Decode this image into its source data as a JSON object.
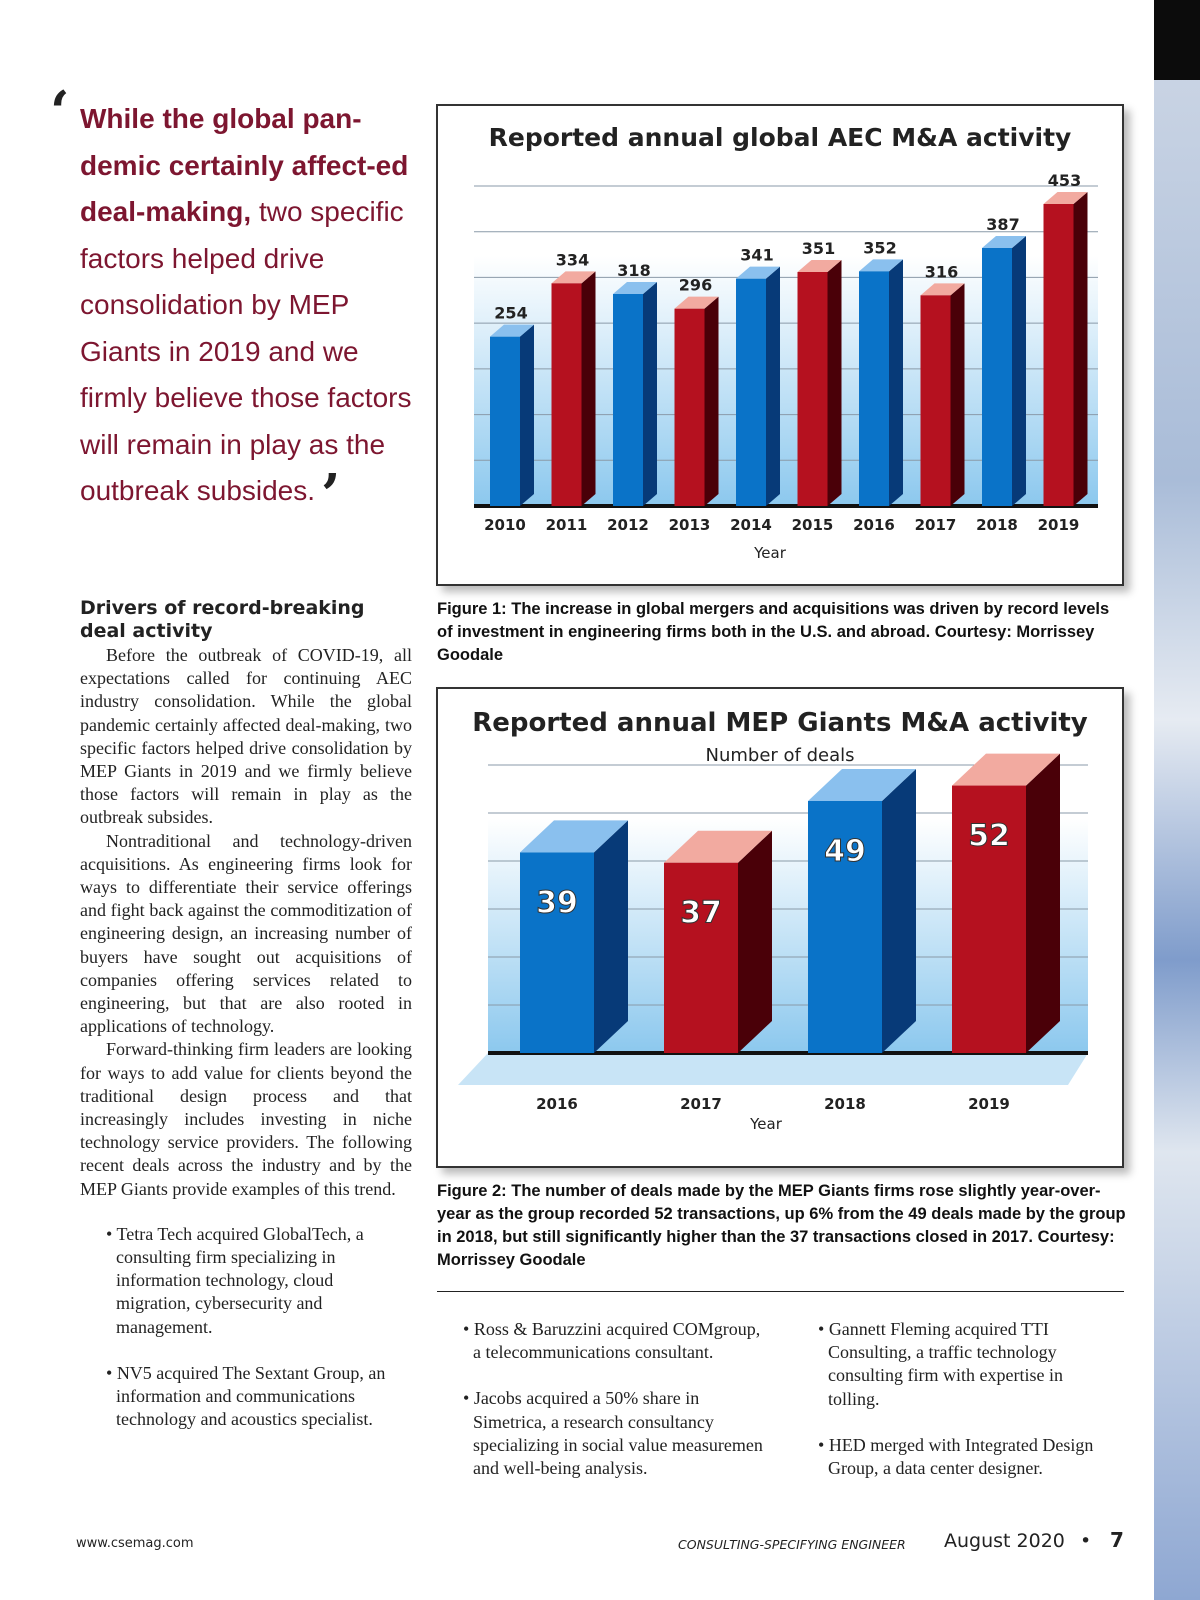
{
  "pull_quote": {
    "bold": "While the global pan-demic certainly affect-ed deal-making,",
    "rest": " two specific factors helped drive consolidation by MEP Giants in 2019 and we firmly believe those factors will remain in play as the outbreak subsides."
  },
  "section_heading": "Drivers of record-breaking deal activity",
  "paragraphs": [
    "Before the outbreak of COVID-19, all expectations called for continuing AEC industry consolidation. While the global pandemic certainly affected deal-making, two specific factors helped drive consolidation by MEP Giants in 2019 and we firmly believe those factors will remain in play as the outbreak subsides.",
    "Nontraditional and technology-driven acquisitions. As engineering firms look for ways to differentiate their service offerings and fight back against the commoditization of engineering design, an increasing number of buyers have sought out acquisitions of companies offering services related to engineering, but that are also rooted in applications of technology.",
    "Forward-thinking firm leaders are looking for ways to add value for clients beyond the traditional design process and that increasingly includes investing in niche technology service providers. The following recent deals across the industry and by the MEP Giants provide examples of this trend."
  ],
  "bullets": [
    "Tetra Tech acquired GlobalTech, a consulting firm specializing in information technology, cloud migration, cybersecurity and management.",
    "NV5 acquired The Sextant Group, an information and communications technology and acoustics specialist.",
    "Ross & Baruzzini acquired COMgroup, a telecommunications consultant.",
    "Jacobs acquired a 50% share in Simetrica, a research consultancy specializing in social value measuremen and well-being analysis.",
    "Gannett Fleming acquired TTI Consulting, a traffic technology consulting firm with expertise in tolling.",
    "HED merged with Integrated Design Group, a data center designer."
  ],
  "chart_data": [
    {
      "type": "bar",
      "title": "Reported annual global AEC M&A activity",
      "subtitle": "",
      "xlabel": "Year",
      "ylabel": "",
      "categories": [
        "2010",
        "2011",
        "2012",
        "2013",
        "2014",
        "2015",
        "2016",
        "2017",
        "2018",
        "2019"
      ],
      "values": [
        254,
        334,
        318,
        296,
        341,
        351,
        352,
        316,
        387,
        453
      ],
      "ylim": [
        0,
        480
      ],
      "grid": true,
      "colors": [
        "blue",
        "red",
        "blue",
        "red",
        "blue",
        "red",
        "blue",
        "red",
        "blue",
        "red"
      ]
    },
    {
      "type": "bar",
      "title": "Reported annual MEP Giants M&A activity",
      "subtitle": "Number of deals",
      "xlabel": "Year",
      "ylabel": "",
      "categories": [
        "2016",
        "2017",
        "2018",
        "2019"
      ],
      "values": [
        39,
        37,
        49,
        52
      ],
      "ylim": [
        0,
        56
      ],
      "grid": true,
      "colors": [
        "blue",
        "red",
        "blue",
        "red"
      ]
    }
  ],
  "captions": [
    "Figure 1: The increase in global mergers and acquisitions was driven by record levels of investment in engineering firms both in the U.S. and abroad. Courtesy: Morrissey Goodale",
    "Figure 2: The number of deals made by the MEP Giants firms rose slightly year-over-year as the group recorded 52 transactions, up 6% from the 49 deals made by the group in 2018, but still significantly higher than the 37 transactions closed in 2017. Courtesy: Morrissey Goodale"
  ],
  "footer": {
    "url": "www.csemag.com",
    "magazine": "CONSULTING-SPECIFYING ENGINEER",
    "date": "August 2020",
    "bullet": "•",
    "page": "7"
  },
  "palette": {
    "blue": "#0a73c8",
    "blue_side": "#073a78",
    "blue_top": "#8ac0ee",
    "red": "#b5111f",
    "red_side": "#4a0008",
    "red_top": "#f2aaa0",
    "quote": "#7d1630"
  }
}
